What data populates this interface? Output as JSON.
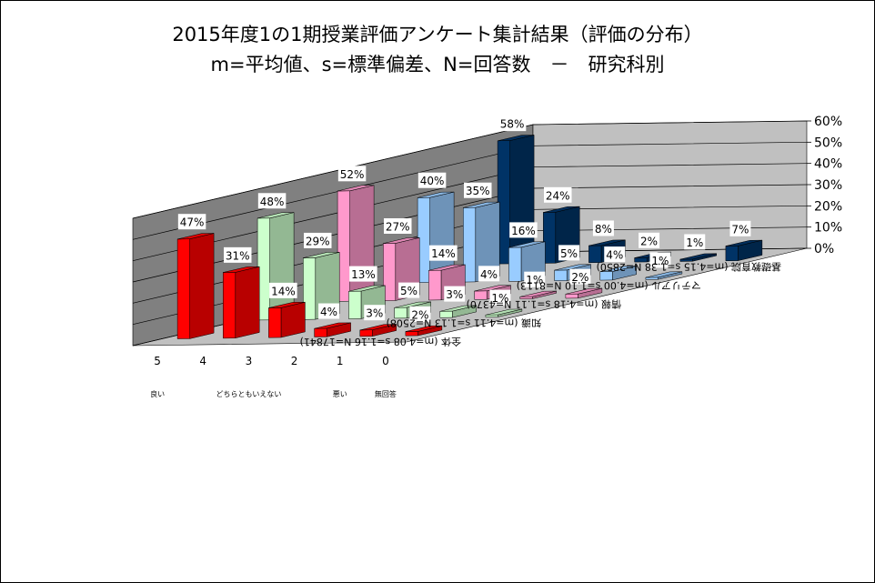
{
  "title_line1": "2015年度1の1期授業評価アンケート集計結果（評価の分布）",
  "title_line2": "m=平均値、s=標準偏差、N=回答数　－　研究科別",
  "chart_data": {
    "type": "bar",
    "subtype": "3d-clustered-column",
    "categories": [
      "5",
      "4",
      "3",
      "2",
      "1",
      "0"
    ],
    "category_sublabels": [
      "良い",
      "",
      "どちらともいえない",
      "",
      "悪い",
      "無回答"
    ],
    "series": [
      {
        "name": "全体 (m=4.08 s=1.16 N=17841)",
        "values": [
          47,
          31,
          14,
          4,
          3,
          2
        ],
        "color": "#ff0000"
      },
      {
        "name": "知識 (m=4.11 s=1.13 N=2508)",
        "values": [
          48,
          29,
          13,
          5,
          3,
          1
        ],
        "color": "#ccffcc"
      },
      {
        "name": "情報 (m=4.18 s=1.11 N=4370)",
        "values": [
          52,
          27,
          14,
          4,
          1,
          2
        ],
        "color": "#ff99cc"
      },
      {
        "name": "マテリアル (m=4.00 s=1.10 N=8113)",
        "values": [
          40,
          35,
          16,
          5,
          4,
          1
        ],
        "color": "#99ccff"
      },
      {
        "name": "基礎教育院 (m=4.15 s=1.38 N=2850)",
        "values": [
          58,
          24,
          8,
          2,
          1,
          7
        ],
        "color": "#003366"
      }
    ],
    "value_labels": [
      [
        "47%",
        "31%",
        "14%",
        "4%",
        "3%",
        "2%"
      ],
      [
        "48%",
        "29%",
        "13%",
        "5%",
        "3%",
        "1%"
      ],
      [
        "52%",
        "27%",
        "14%",
        "4%",
        "1%",
        "2%"
      ],
      [
        "40%",
        "35%",
        "16%",
        "5%",
        "4%",
        "1%"
      ],
      [
        "58%",
        "24%",
        "8%",
        "2%",
        "1%",
        "7%"
      ]
    ],
    "y_ticks": [
      "0%",
      "10%",
      "20%",
      "30%",
      "40%",
      "50%",
      "60%"
    ],
    "ylim": [
      0,
      60
    ],
    "grid": true
  }
}
